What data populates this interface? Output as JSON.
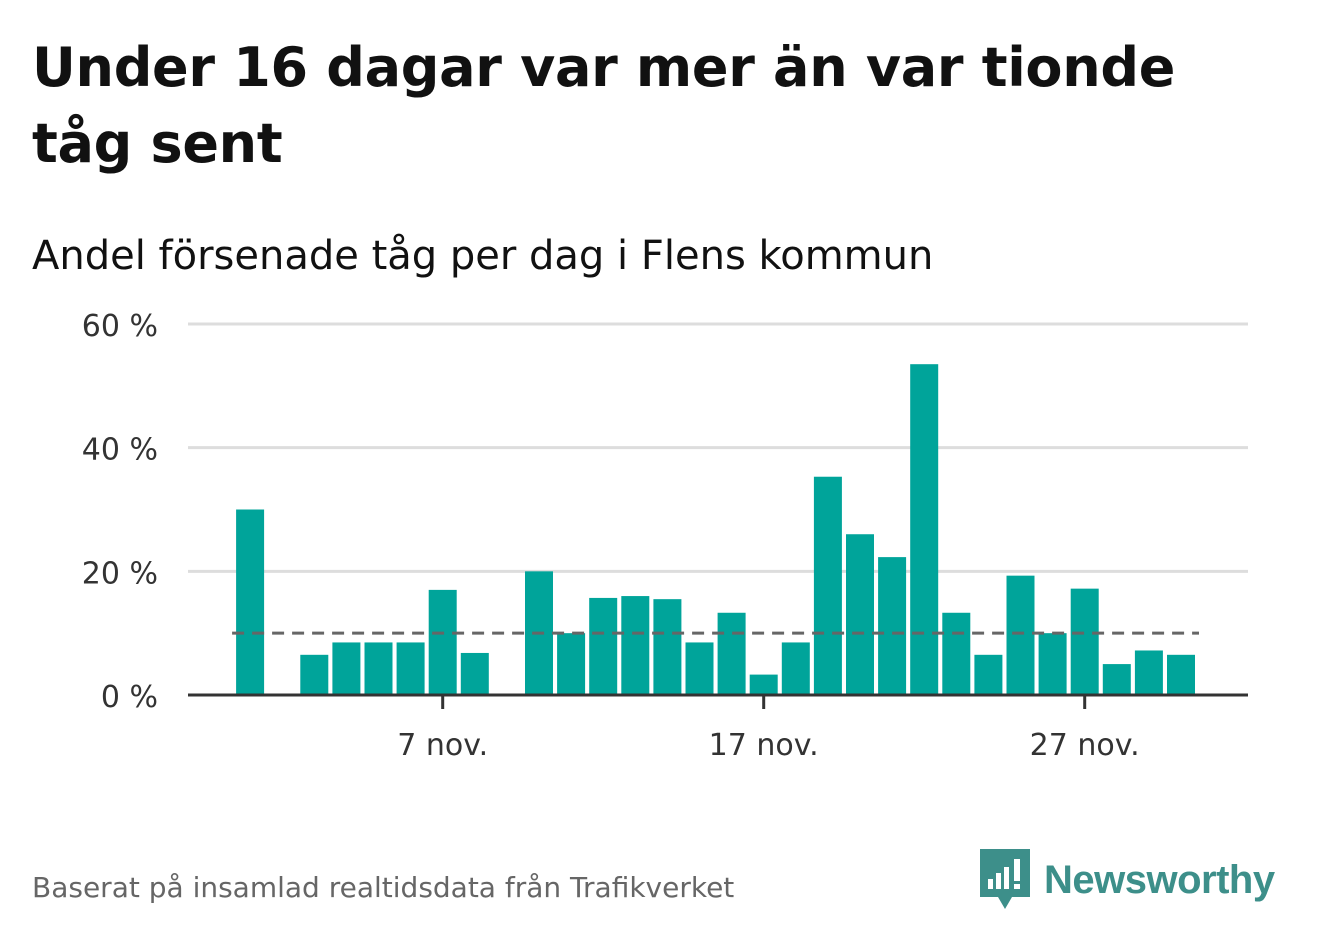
{
  "header": {
    "title": "Under 16 dagar var mer än var tionde tåg sent",
    "subtitle": "Andel försenade tåg per dag i Flens kommun"
  },
  "footer": {
    "source": "Baserat på insamlad realtidsdata från Trafikverket",
    "brand": "Newsworthy"
  },
  "colors": {
    "bar": "#00a49a",
    "grid": "#dddddd",
    "axis": "#333333",
    "reference": "#666666",
    "brand": "#3d8f8a"
  },
  "icons": {
    "brand": "bar-chart-speech-bubble-icon"
  },
  "chart_data": {
    "type": "bar",
    "title": "Under 16 dagar var mer än var tionde tåg sent",
    "subtitle": "Andel försenade tåg per dag i Flens kommun",
    "xlabel": "",
    "ylabel": "",
    "ylim": [
      0,
      60
    ],
    "yticks": [
      {
        "value": 0,
        "label": "0 %"
      },
      {
        "value": 20,
        "label": "20 %"
      },
      {
        "value": 40,
        "label": "40 %"
      },
      {
        "value": 60,
        "label": "60 %"
      }
    ],
    "xticks": [
      {
        "day": 7,
        "label": "7 nov."
      },
      {
        "day": 17,
        "label": "17 nov."
      },
      {
        "day": 27,
        "label": "27 nov."
      }
    ],
    "grid": true,
    "reference_line": 10,
    "days": [
      1,
      2,
      3,
      4,
      5,
      6,
      7,
      8,
      9,
      10,
      11,
      12,
      13,
      14,
      15,
      16,
      17,
      18,
      19,
      20,
      21,
      22,
      23,
      24,
      25,
      26,
      27,
      28,
      29,
      30
    ],
    "values": [
      30,
      null,
      6.5,
      8.5,
      8.5,
      8.5,
      17,
      6.8,
      null,
      20,
      10,
      15.7,
      16,
      15.5,
      8.5,
      13.3,
      3.3,
      8.5,
      35.3,
      26,
      22.3,
      53.5,
      13.3,
      6.5,
      19.3,
      10,
      17.2,
      5,
      7.2,
      6.5
    ]
  }
}
